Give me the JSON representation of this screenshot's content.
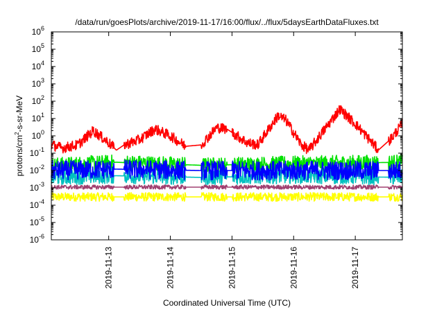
{
  "chart_data": {
    "type": "line",
    "title": "/data/run/goesPlots/archive/2019-11-17/16:00/flux/../flux/5daysEarthDataFluxes.txt",
    "xlabel": "Coordinated Universal Time (UTC)",
    "ylabel": {
      "prefix": "protons/cm",
      "sup": "2",
      "suffix": "-s-sr-MeV"
    },
    "yscale": "log",
    "ylim": [
      1e-06,
      1000000.0
    ],
    "ytick_labels": [
      {
        "base": "10",
        "exp": "-6"
      },
      {
        "base": "10",
        "exp": "-5"
      },
      {
        "base": "10",
        "exp": "-4"
      },
      {
        "base": "10",
        "exp": "-3"
      },
      {
        "base": "10",
        "exp": "-2"
      },
      {
        "base": "10",
        "exp": "-1"
      },
      {
        "base": "10",
        "exp": "0"
      },
      {
        "base": "10",
        "exp": "1"
      },
      {
        "base": "10",
        "exp": "2"
      },
      {
        "base": "10",
        "exp": "3"
      },
      {
        "base": "10",
        "exp": "4"
      },
      {
        "base": "10",
        "exp": "5"
      },
      {
        "base": "10",
        "exp": "6"
      }
    ],
    "xlim": [
      "2019-11-12 01:40",
      "2019-11-17 18:20"
    ],
    "xtick_labels": [
      "2019-11-13",
      "2019-11-14",
      "2019-11-15",
      "2019-11-16",
      "2019-11-17"
    ],
    "grid": false,
    "gaps": [
      [
        "2019-11-13 02:00",
        "2019-11-13 06:00"
      ],
      [
        "2019-11-14 06:00",
        "2019-11-14 12:00"
      ],
      [
        "2019-11-14 22:00",
        "2019-11-15 00:00"
      ],
      [
        "2019-11-17 09:00",
        "2019-11-17 13:00"
      ]
    ],
    "series": [
      {
        "color": "#ffff00",
        "noise": 0.25,
        "points": [
          [
            "2019-11-12 01:40",
            0.0003
          ],
          [
            "2019-11-13 03:00",
            0.0003
          ],
          [
            "2019-11-14 12:00",
            0.0003
          ],
          [
            "2019-11-16 00:00",
            0.0003
          ],
          [
            "2019-11-17 18:20",
            0.0003
          ]
        ]
      },
      {
        "color": "#00e000",
        "noise": 0.45,
        "points": [
          [
            "2019-11-12 01:40",
            0.02
          ],
          [
            "2019-11-13 03:00",
            0.03
          ],
          [
            "2019-11-14 12:00",
            0.02
          ],
          [
            "2019-11-16 00:00",
            0.025
          ],
          [
            "2019-11-17 18:20",
            0.03
          ]
        ]
      },
      {
        "color": "#00c0c0",
        "noise": 0.45,
        "points": [
          [
            "2019-11-12 01:40",
            0.004
          ],
          [
            "2019-11-13 03:00",
            0.005
          ],
          [
            "2019-11-14 12:00",
            0.004
          ],
          [
            "2019-11-16 00:00",
            0.005
          ],
          [
            "2019-11-17 18:20",
            0.004
          ]
        ]
      },
      {
        "color": "#0000ff",
        "noise": 0.55,
        "points": [
          [
            "2019-11-12 01:40",
            0.01
          ],
          [
            "2019-11-13 03:00",
            0.012
          ],
          [
            "2019-11-14 12:00",
            0.01
          ],
          [
            "2019-11-16 00:00",
            0.01
          ],
          [
            "2019-11-17 18:20",
            0.01
          ]
        ]
      },
      {
        "color": "#a04070",
        "noise": 0.12,
        "points": [
          [
            "2019-11-12 01:40",
            0.0011
          ],
          [
            "2019-11-13 03:00",
            0.0011
          ],
          [
            "2019-11-14 12:00",
            0.0011
          ],
          [
            "2019-11-16 00:00",
            0.0011
          ],
          [
            "2019-11-17 18:20",
            0.0011
          ]
        ]
      },
      {
        "color": "#ff0000",
        "noise": 0.3,
        "points": [
          [
            "2019-11-12 01:40",
            0.3
          ],
          [
            "2019-11-12 06:00",
            0.2
          ],
          [
            "2019-11-12 12:00",
            0.3
          ],
          [
            "2019-11-12 18:00",
            2.0
          ],
          [
            "2019-11-13 00:00",
            0.4
          ],
          [
            "2019-11-13 03:00",
            0.15
          ],
          [
            "2019-11-13 06:00",
            0.3
          ],
          [
            "2019-11-13 12:00",
            0.6
          ],
          [
            "2019-11-13 18:00",
            2.5
          ],
          [
            "2019-11-14 00:00",
            1.0
          ],
          [
            "2019-11-14 06:00",
            0.25
          ],
          [
            "2019-11-14 12:00",
            0.3
          ],
          [
            "2019-11-14 18:00",
            3.0
          ],
          [
            "2019-11-14 22:00",
            2.5
          ],
          [
            "2019-11-15 06:00",
            0.4
          ],
          [
            "2019-11-15 10:00",
            0.3
          ],
          [
            "2019-11-15 18:00",
            15
          ],
          [
            "2019-11-15 21:00",
            8
          ],
          [
            "2019-11-16 03:00",
            0.3
          ],
          [
            "2019-11-16 06:00",
            0.15
          ],
          [
            "2019-11-16 18:00",
            35
          ],
          [
            "2019-11-17 00:00",
            5
          ],
          [
            "2019-11-17 06:00",
            0.5
          ],
          [
            "2019-11-17 09:00",
            0.15
          ],
          [
            "2019-11-17 14:00",
            0.7
          ],
          [
            "2019-11-17 18:20",
            5
          ]
        ]
      }
    ]
  }
}
